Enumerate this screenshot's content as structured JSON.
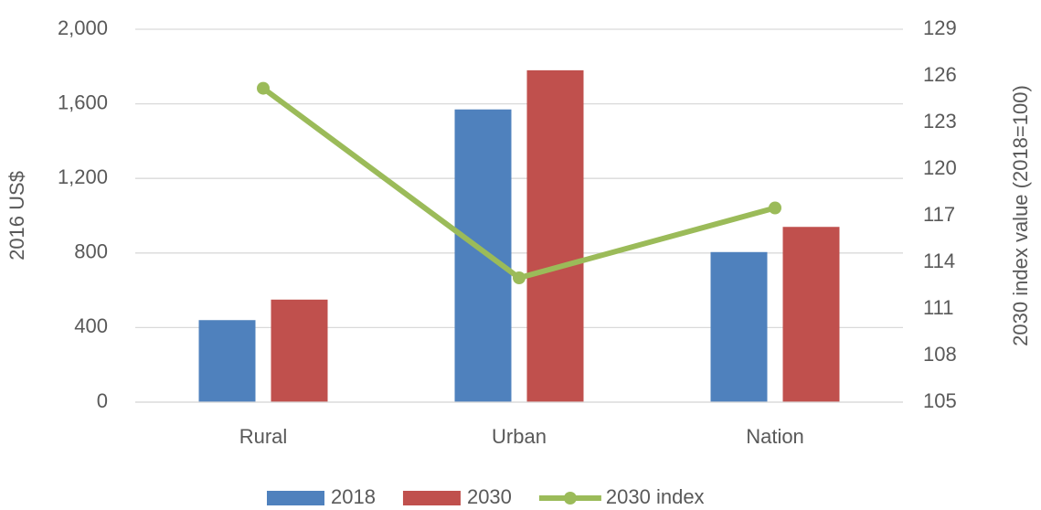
{
  "chart_data": {
    "type": "bar",
    "categories": [
      "Rural",
      "Urban",
      "Nation"
    ],
    "y_label": "2016 US$",
    "y2_label": "2030 index value (2018=100)",
    "series": [
      {
        "name": "2018",
        "color": "#4f81bd",
        "values": [
          440,
          1570,
          805
        ]
      },
      {
        "name": "2030",
        "color": "#c0504d",
        "values": [
          550,
          1780,
          940
        ]
      },
      {
        "name": "2030 index",
        "type": "line",
        "axis": "y2",
        "color": "#9bbb59",
        "values": [
          125.2,
          113.0,
          117.5
        ]
      }
    ],
    "ylim": [
      0,
      2000
    ],
    "yticks": [
      0,
      400,
      800,
      {
        "value": 1200,
        "label": "1,200"
      },
      {
        "value": 1600,
        "label": "1,600"
      },
      {
        "value": 2000,
        "label": "2,000"
      }
    ],
    "y2lim": [
      105,
      129
    ],
    "y2ticks": [
      105,
      108,
      111,
      114,
      117,
      120,
      123,
      126,
      129
    ],
    "grid": true,
    "legend": "bottom"
  }
}
